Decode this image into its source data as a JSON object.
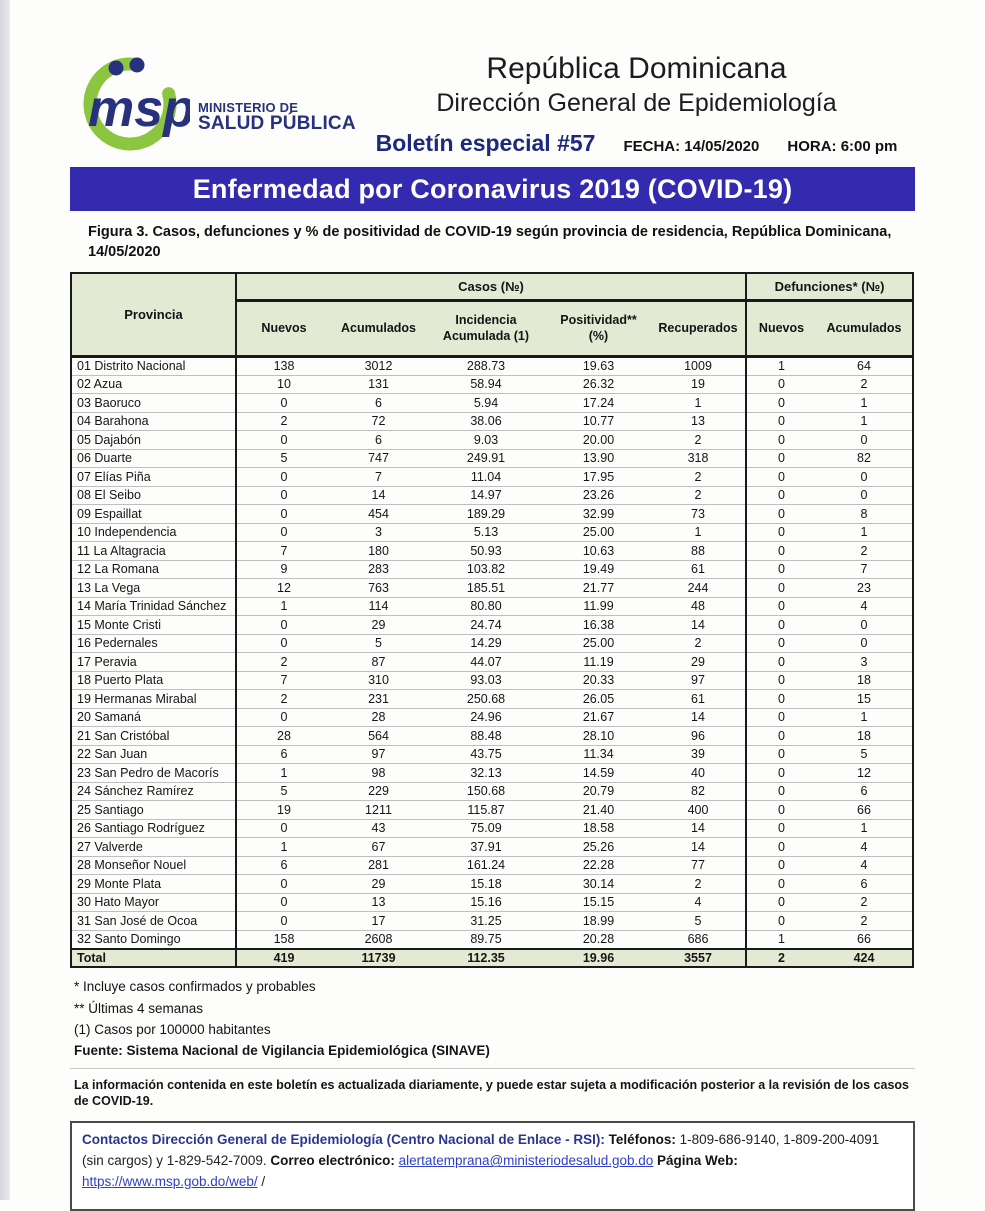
{
  "header": {
    "logo": {
      "msp_text": "msp",
      "ministry_line1": "MINISTERIO DE",
      "ministry_line2": "SALUD PÚBLICA",
      "navy": "#28317e",
      "green": "#8cc640"
    },
    "title1": "República Dominicana",
    "title2": "Dirección General de Epidemiología",
    "bulletin": "Boletín especial #57",
    "fecha": "FECHA: 14/05/2020",
    "hora": "HORA: 6:00 pm"
  },
  "banner": {
    "title": "Enfermedad por Coronavirus 2019 (COVID-19)",
    "bg_color": "#342ab0",
    "text_color": "#ffffff"
  },
  "caption": "Figura 3. Casos, defunciones y % de positividad de COVID-19 según provincia de residencia, República Dominicana, 14/05/2020",
  "table": {
    "header_bg": "#e3ead4",
    "col_province": "Provincia",
    "group_casos": "Casos (№)",
    "group_defunciones": "Defunciones* (№)",
    "subheaders": [
      "Nuevos",
      "Acumulados",
      "Incidencia Acumulada (1)",
      "Positividad** (%)",
      "Recuperados",
      "Nuevos",
      "Acumulados"
    ],
    "rows": [
      [
        "01 Distrito Nacional",
        "138",
        "3012",
        "288.73",
        "19.63",
        "1009",
        "1",
        "64"
      ],
      [
        "02 Azua",
        "10",
        "131",
        "58.94",
        "26.32",
        "19",
        "0",
        "2"
      ],
      [
        "03 Baoruco",
        "0",
        "6",
        "5.94",
        "17.24",
        "1",
        "0",
        "1"
      ],
      [
        "04 Barahona",
        "2",
        "72",
        "38.06",
        "10.77",
        "13",
        "0",
        "1"
      ],
      [
        "05 Dajabón",
        "0",
        "6",
        "9.03",
        "20.00",
        "2",
        "0",
        "0"
      ],
      [
        "06 Duarte",
        "5",
        "747",
        "249.91",
        "13.90",
        "318",
        "0",
        "82"
      ],
      [
        "07 Elías Piña",
        "0",
        "7",
        "11.04",
        "17.95",
        "2",
        "0",
        "0"
      ],
      [
        "08 El Seibo",
        "0",
        "14",
        "14.97",
        "23.26",
        "2",
        "0",
        "0"
      ],
      [
        "09 Espaillat",
        "0",
        "454",
        "189.29",
        "32.99",
        "73",
        "0",
        "8"
      ],
      [
        "10 Independencia",
        "0",
        "3",
        "5.13",
        "25.00",
        "1",
        "0",
        "1"
      ],
      [
        "11 La Altagracia",
        "7",
        "180",
        "50.93",
        "10.63",
        "88",
        "0",
        "2"
      ],
      [
        "12 La Romana",
        "9",
        "283",
        "103.82",
        "19.49",
        "61",
        "0",
        "7"
      ],
      [
        "13 La Vega",
        "12",
        "763",
        "185.51",
        "21.77",
        "244",
        "0",
        "23"
      ],
      [
        "14 María Trinidad Sánchez",
        "1",
        "114",
        "80.80",
        "11.99",
        "48",
        "0",
        "4"
      ],
      [
        "15 Monte Cristi",
        "0",
        "29",
        "24.74",
        "16.38",
        "14",
        "0",
        "0"
      ],
      [
        "16 Pedernales",
        "0",
        "5",
        "14.29",
        "25.00",
        "2",
        "0",
        "0"
      ],
      [
        "17 Peravia",
        "2",
        "87",
        "44.07",
        "11.19",
        "29",
        "0",
        "3"
      ],
      [
        "18 Puerto Plata",
        "7",
        "310",
        "93.03",
        "20.33",
        "97",
        "0",
        "18"
      ],
      [
        "19 Hermanas Mirabal",
        "2",
        "231",
        "250.68",
        "26.05",
        "61",
        "0",
        "15"
      ],
      [
        "20 Samaná",
        "0",
        "28",
        "24.96",
        "21.67",
        "14",
        "0",
        "1"
      ],
      [
        "21 San Cristóbal",
        "28",
        "564",
        "88.48",
        "28.10",
        "96",
        "0",
        "18"
      ],
      [
        "22 San Juan",
        "6",
        "97",
        "43.75",
        "11.34",
        "39",
        "0",
        "5"
      ],
      [
        "23 San Pedro de Macorís",
        "1",
        "98",
        "32.13",
        "14.59",
        "40",
        "0",
        "12"
      ],
      [
        "24 Sánchez Ramírez",
        "5",
        "229",
        "150.68",
        "20.79",
        "82",
        "0",
        "6"
      ],
      [
        "25 Santiago",
        "19",
        "1211",
        "115.87",
        "21.40",
        "400",
        "0",
        "66"
      ],
      [
        "26 Santiago Rodríguez",
        "0",
        "43",
        "75.09",
        "18.58",
        "14",
        "0",
        "1"
      ],
      [
        "27 Valverde",
        "1",
        "67",
        "37.91",
        "25.26",
        "14",
        "0",
        "4"
      ],
      [
        "28 Monseñor Nouel",
        "6",
        "281",
        "161.24",
        "22.28",
        "77",
        "0",
        "4"
      ],
      [
        "29 Monte Plata",
        "0",
        "29",
        "15.18",
        "30.14",
        "2",
        "0",
        "6"
      ],
      [
        "30 Hato Mayor",
        "0",
        "13",
        "15.16",
        "15.15",
        "4",
        "0",
        "2"
      ],
      [
        "31 San José de Ocoa",
        "0",
        "17",
        "31.25",
        "18.99",
        "5",
        "0",
        "2"
      ],
      [
        "32 Santo Domingo",
        "158",
        "2608",
        "89.75",
        "20.28",
        "686",
        "1",
        "66"
      ]
    ],
    "total_row": [
      "Total",
      "419",
      "11739",
      "112.35",
      "19.96",
      "3557",
      "2",
      "424"
    ]
  },
  "footnotes": [
    "* Incluye casos confirmados y probables",
    "** Últimas 4 semanas",
    "(1) Casos por 100000 habitantes"
  ],
  "fuente": "Fuente: Sistema Nacional de Vigilancia Epidemiológica (SINAVE)",
  "disclaimer": "La información contenida en este boletín es actualizada diariamente, y puede estar sujeta a modificación posterior a la revisión de los casos de COVID-19.",
  "contact": {
    "heading": "Contactos Dirección General de Epidemiología (Centro Nacional de Enlace - RSI):",
    "tel_label": "Teléfonos:",
    "tel_part1": "1-809-686-9140, 1-809-200-4091 (sin cargos) y 1-829-542-7009.",
    "email_label": "Correo electrónico:",
    "email": "alertatemprana@ministeriodesalud.gob.do",
    "web_label": "Página Web:",
    "web": "https://www.msp.gob.do/web/",
    "suffix": "/"
  }
}
